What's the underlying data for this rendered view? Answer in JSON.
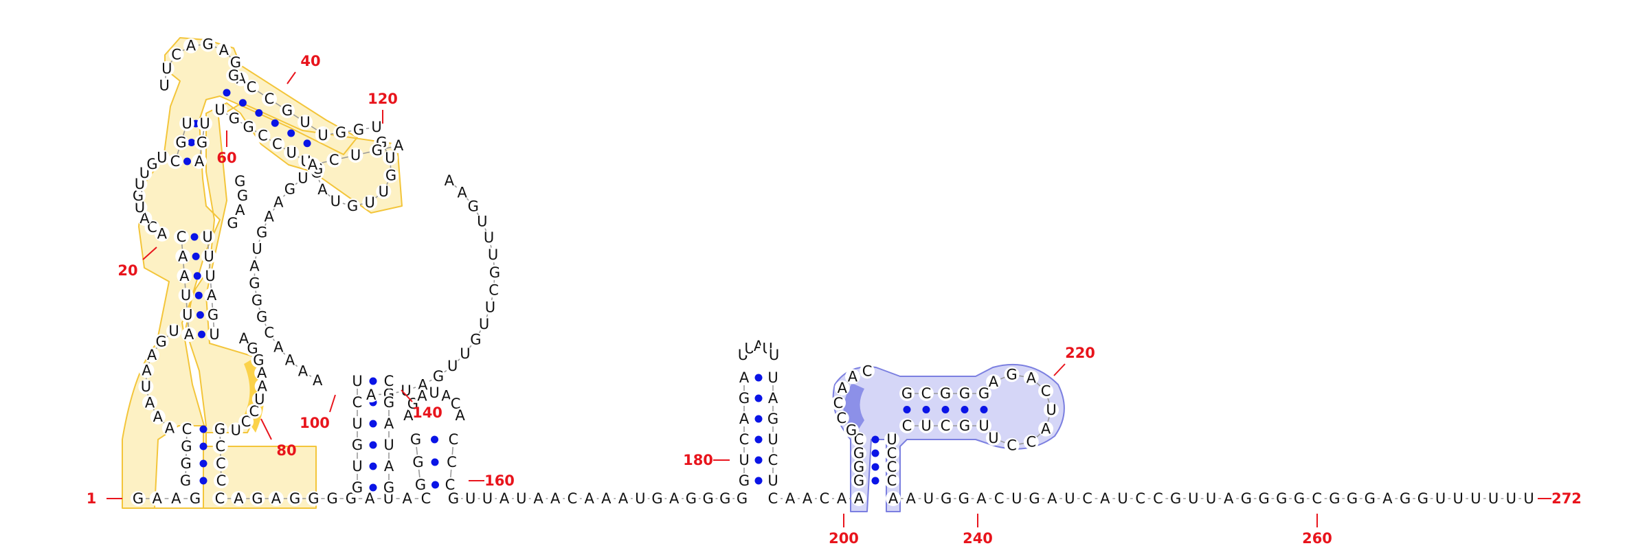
{
  "diagram": {
    "kind": "RNA secondary structure",
    "sequence_length": 272,
    "colors": {
      "base_text": "#111111",
      "backbone": "#9a9a9a",
      "pair_dot": "#0a14e6",
      "position_label": "#e8141c",
      "yellow_fill": "#fdf1c4",
      "yellow_stroke": "#f3c53a",
      "yellow_accent": "#fbd24b",
      "blue_fill": "#d5d6f7",
      "blue_stroke": "#7b7fe0",
      "blue_accent": "#8c90e8"
    },
    "position_labels": [
      {
        "n": 1,
        "text": "1"
      },
      {
        "n": 20,
        "text": "20"
      },
      {
        "n": 40,
        "text": "40"
      },
      {
        "n": 60,
        "text": "60"
      },
      {
        "n": 80,
        "text": "80"
      },
      {
        "n": 100,
        "text": "100"
      },
      {
        "n": 120,
        "text": "120"
      },
      {
        "n": 140,
        "text": "140"
      },
      {
        "n": 160,
        "text": "160"
      },
      {
        "n": 180,
        "text": "180"
      },
      {
        "n": 200,
        "text": "200"
      },
      {
        "n": 220,
        "text": "220"
      },
      {
        "n": 240,
        "text": "240"
      },
      {
        "n": 260,
        "text": "260"
      },
      {
        "n": 272,
        "text": "272"
      }
    ],
    "segments": {
      "bottom_left": "GAAG",
      "hp1_stem_down": "CAGAGGGGAUAC",
      "stem_a_left": "GGGC",
      "loop_a_left": "AAAUAAGU",
      "stem_b_left": "AUUAAC",
      "loop_b_left": "ACAUGU",
      "stem_c_left": "CGU",
      "loop_c_top": "UUCAGAGA",
      "stem_c_right": "GCCG",
      "hp2_stem_left": "UGGU",
      "hp2_loop": "GUGUUGUAG",
      "multiloop_left": "ACUGAGCCA",
      "big_loop_left": "GUGAAGUAGGGCAAAA",
      "stem_d": "GUGUCU",
      "hp3_loop": "AGACUAC",
      "big_loop_right": "AAGUUUGCUUGUUGAUGA",
      "stem_d_right": "GAUAGC",
      "hp4": "GGCCAUCA",
      "linker_1": "GUUAUAACAAAUGAGGGG",
      "hp5_left": "GUCAGAAU",
      "hp5_loop": "UUA",
      "hp5_right": "UCUGAUC",
      "linker_2": "CAACAA",
      "blue_left": "GGGCCGC",
      "blue_loop_top": "AAC",
      "blue_stem_top": "GCGGG",
      "blue_right_loop": "AGACUACCU",
      "blue_stem_bottom": "CUCGU",
      "blue_right_down": "CCCU",
      "tail": "AAUGGACUGAUCAUCCGUUAGGGGCGGGAGGUUUUUU"
    }
  }
}
